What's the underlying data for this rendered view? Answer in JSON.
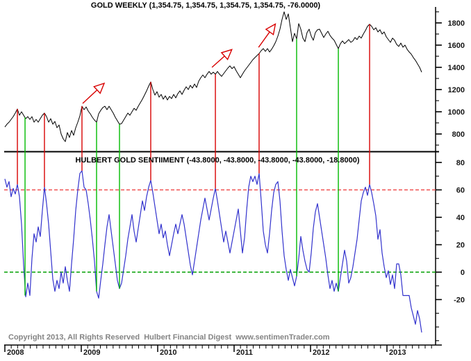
{
  "titles": {
    "gold": "GOLD WEEKLY (1,354.75, 1,354.75, 1,354.75, 1,354.75, -76.0000)",
    "sentiment": "HULBERT GOLD SENTIIMENT (-43.8000, -43.8000, -43.8000, -43.8000, -18.8000)"
  },
  "footer": {
    "copyright": "Copyright 2013, All Rights Reserved  Hulbert Financial Digest  www.sentimenTrader.com"
  },
  "colors": {
    "gold_line": "#000000",
    "sentiment_line": "#3232cd",
    "signal_red": "#d80000",
    "signal_green": "#00bb00",
    "threshold_red": "#f05050",
    "threshold_green": "#00a000",
    "axis": "#000000",
    "copyright_gray": "#848484"
  },
  "chart_data": [
    {
      "type": "line",
      "panel": "top",
      "title": "GOLD WEEKLY (1,354.75, 1,354.75, 1,354.75, 1,354.75, -76.0000)",
      "xlabel": "",
      "ylabel": "",
      "x_ticks": [
        2008,
        2009,
        2010,
        2011,
        2012,
        2013
      ],
      "x_minor_step": 0.0833333,
      "y_ticks": [
        800,
        1000,
        1200,
        1400,
        1600,
        1800
      ],
      "y_minor_step": 100,
      "ylim": [
        650,
        1931
      ],
      "grid": false,
      "legend": "none",
      "x0": 2008.0,
      "dx": 0.0272727,
      "values": [
        863,
        888,
        906,
        931,
        956,
        988,
        1025,
        969,
        1000,
        969,
        938,
        956,
        931,
        956,
        906,
        931,
        906,
        938,
        969,
        988,
        956,
        906,
        938,
        888,
        913,
        856,
        881,
        800,
        756,
        731,
        813,
        769,
        831,
        788,
        856,
        906,
        963,
        1050,
        1019,
        1044,
        1006,
        981,
        950,
        925,
        906,
        981,
        1013,
        1038,
        1050,
        1019,
        1050,
        1019,
        988,
        950,
        919,
        888,
        894,
        925,
        956,
        988,
        969,
        1000,
        1031,
        1013,
        1050,
        1081,
        1113,
        1150,
        1188,
        1231,
        1269,
        1200,
        1150,
        1181,
        1131,
        1156,
        1113,
        1144,
        1106,
        1138,
        1119,
        1156,
        1125,
        1163,
        1188,
        1156,
        1194,
        1225,
        1200,
        1238,
        1213,
        1250,
        1219,
        1275,
        1306,
        1331,
        1306,
        1338,
        1363,
        1338,
        1356,
        1338,
        1363,
        1338,
        1319,
        1344,
        1369,
        1394,
        1413,
        1388,
        1406,
        1369,
        1338,
        1306,
        1338,
        1369,
        1394,
        1419,
        1444,
        1469,
        1488,
        1506,
        1525,
        1550,
        1569,
        1544,
        1569,
        1538,
        1563,
        1594,
        1631,
        1681,
        1744,
        1831,
        1900,
        1831,
        1881,
        1756,
        1631,
        1706,
        1656,
        1794,
        1744,
        1663,
        1631,
        1713,
        1744,
        1681,
        1644,
        1713,
        1738,
        1744,
        1706,
        1669,
        1700,
        1725,
        1688,
        1663,
        1644,
        1606,
        1569,
        1613,
        1638,
        1613,
        1631,
        1650,
        1625,
        1638,
        1669,
        1650,
        1681,
        1663,
        1700,
        1731,
        1769,
        1788,
        1769,
        1738,
        1756,
        1719,
        1738,
        1700,
        1719,
        1675,
        1650,
        1625,
        1663,
        1644,
        1606,
        1588,
        1619,
        1581,
        1600,
        1563,
        1538,
        1519,
        1488,
        1463,
        1431,
        1400,
        1356
      ]
    },
    {
      "type": "line",
      "panel": "bottom",
      "title": "HULBERT GOLD SENTIIMENT (-43.8000, -43.8000, -43.8000, -43.8000, -18.8000)",
      "xlabel": "",
      "ylabel": "",
      "x_ticks": [
        2008,
        2009,
        2010,
        2011,
        2012,
        2013
      ],
      "x_minor_step": 0.0833333,
      "y_ticks": [
        -20,
        0,
        20,
        40,
        60,
        80
      ],
      "y_minor_step": 10,
      "ylim": [
        -53,
        82
      ],
      "grid": false,
      "legend": "none",
      "levels": [
        {
          "value": 60,
          "color": "#f05050",
          "style": "dashed"
        },
        {
          "value": 0,
          "color": "#00a000",
          "style": "dashed"
        }
      ],
      "x0": 2008.0,
      "dx": 0.0272727,
      "values": [
        68,
        62,
        66,
        55,
        61,
        57,
        64,
        55,
        35,
        5,
        -18,
        -8,
        -17,
        10,
        28,
        22,
        33,
        26,
        45,
        62,
        50,
        35,
        15,
        -5,
        -14,
        -6,
        -12,
        0,
        -8,
        4,
        -6,
        -14,
        6,
        24,
        45,
        60,
        72,
        74,
        62,
        60,
        50,
        38,
        24,
        8,
        -14,
        -19,
        -6,
        6,
        20,
        33,
        42,
        30,
        18,
        6,
        -6,
        -12,
        -8,
        2,
        12,
        24,
        33,
        42,
        30,
        22,
        32,
        42,
        52,
        45,
        55,
        62,
        67,
        58,
        48,
        38,
        28,
        35,
        25,
        30,
        20,
        12,
        20,
        28,
        35,
        28,
        35,
        42,
        35,
        25,
        15,
        5,
        -2,
        8,
        18,
        28,
        38,
        46,
        54,
        46,
        38,
        46,
        54,
        61,
        52,
        42,
        32,
        22,
        30,
        22,
        14,
        22,
        30,
        38,
        46,
        30,
        14,
        25,
        45,
        62,
        70,
        66,
        70,
        64,
        72,
        52,
        30,
        20,
        14,
        28,
        45,
        58,
        64,
        66,
        52,
        30,
        12,
        2,
        -6,
        2,
        -4,
        -10,
        -3,
        10,
        26,
        16,
        8,
        2,
        0,
        14,
        32,
        44,
        50,
        40,
        30,
        20,
        10,
        -2,
        -12,
        -6,
        -14,
        -8,
        -14,
        -4,
        6,
        16,
        8,
        -8,
        -4,
        4,
        14,
        24,
        38,
        52,
        58,
        62,
        56,
        64,
        58,
        50,
        41,
        24,
        31,
        14,
        4,
        -4,
        1,
        -9,
        -2,
        -12,
        6,
        6,
        -2,
        -17,
        -17,
        -17,
        -17,
        -26,
        -32,
        -38,
        -28,
        -34,
        -44
      ]
    }
  ],
  "annotations": {
    "red_lines": [
      {
        "year": 2008.164,
        "price_top": 1025,
        "sentiment_bottom": 64
      },
      {
        "year": 2008.518,
        "price_top": 988,
        "sentiment_bottom": 62
      },
      {
        "year": 2009.009,
        "price_top": 1050,
        "sentiment_bottom": 74
      },
      {
        "year": 2009.909,
        "price_top": 1269,
        "sentiment_bottom": 67
      },
      {
        "year": 2010.755,
        "price_top": 1338,
        "sentiment_bottom": 61
      },
      {
        "year": 2011.327,
        "price_top": 1525,
        "sentiment_bottom": 72
      },
      {
        "year": 2012.773,
        "price_top": 1788,
        "sentiment_bottom": 64
      }
    ],
    "green_lines": [
      {
        "year": 2008.264,
        "price_top": 950,
        "sentiment_bottom": -17
      },
      {
        "year": 2009.2,
        "price_top": 906,
        "sentiment_bottom": -14
      },
      {
        "year": 2009.5,
        "price_top": 888,
        "sentiment_bottom": -12
      },
      {
        "year": 2011.818,
        "price_top": 1656,
        "sentiment_bottom": -3
      },
      {
        "year": 2012.364,
        "price_top": 1569,
        "sentiment_bottom": -14
      }
    ],
    "arrows": [
      {
        "tail": [
          2009.018,
          1075
        ],
        "head": [
          2009.3,
          1256
        ]
      },
      {
        "tail": [
          2010.71,
          1400
        ],
        "head": [
          2010.97,
          1560
        ]
      },
      {
        "tail": [
          2011.32,
          1580
        ],
        "head": [
          2011.54,
          1790
        ]
      }
    ]
  }
}
